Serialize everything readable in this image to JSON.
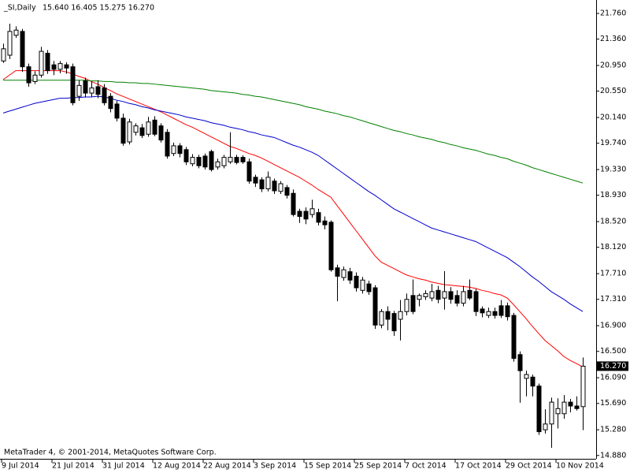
{
  "chart_data": {
    "type": "candlestick",
    "title": "_SI,Daily",
    "header_values": "15.640 16.405 15.275 16.270",
    "footer": "MetaTrader 4, © 2001-2014, MetaQuotes Software Corp.",
    "categories": [
      "9 Jul 2014",
      null,
      null,
      null,
      null,
      null,
      null,
      null,
      "21 Jul 2014",
      null,
      null,
      null,
      null,
      null,
      null,
      null,
      "31 Jul 2014",
      null,
      null,
      null,
      null,
      null,
      null,
      null,
      "12 Aug 2014",
      null,
      null,
      null,
      null,
      null,
      null,
      null,
      "22 Aug 2014",
      null,
      null,
      null,
      null,
      null,
      null,
      null,
      "3 Sep 2014",
      null,
      null,
      null,
      null,
      null,
      null,
      null,
      "15 Sep 2014",
      null,
      null,
      null,
      null,
      null,
      null,
      null,
      "25 Sep 2014",
      null,
      null,
      null,
      null,
      null,
      null,
      null,
      "7 Oct 2014",
      null,
      null,
      null,
      null,
      null,
      null,
      null,
      "17 Oct 2014",
      null,
      null,
      null,
      null,
      null,
      null,
      null,
      "29 Oct 2014",
      null,
      null,
      null,
      null,
      null,
      null,
      null,
      "10 Nov 2014",
      null,
      null,
      null,
      null
    ],
    "open": [
      21.02,
      21.11,
      21.42,
      21.48,
      20.93,
      20.7,
      20.8,
      21.14,
      20.96,
      20.89,
      20.96,
      20.93,
      20.47,
      20.71,
      20.52,
      20.62,
      20.6,
      20.47,
      20.35,
      20.13,
      19.76,
      19.91,
      19.98,
      19.88,
      20.1,
      20.01,
      19.91,
      19.58,
      19.7,
      19.64,
      19.42,
      19.52,
      19.54,
      19.61,
      19.37,
      19.39,
      19.45,
      19.52,
      19.52,
      19.45,
      19.21,
      19.17,
      19.03,
      19.15,
      18.99,
      19.05,
      18.96,
      18.68,
      18.68,
      18.63,
      18.66,
      18.53,
      18.51,
      17.8,
      17.65,
      17.74,
      17.67,
      17.45,
      17.55,
      17.49,
      16.91,
      17.12,
      17.09,
      17.0,
      17.12,
      17.37,
      17.31,
      17.35,
      17.33,
      17.45,
      17.33,
      17.43,
      17.37,
      17.25,
      17.45,
      17.43,
      17.16,
      17.06,
      17.12,
      17.21,
      17.21,
      17.06,
      16.45,
      16.08,
      16.1,
      15.96,
      15.28,
      15.37,
      15.53,
      15.53,
      15.71,
      15.65,
      15.64
    ],
    "high": [
      21.29,
      21.6,
      21.56,
      21.52,
      20.98,
      20.86,
      21.24,
      21.19,
      21.02,
      21.02,
      21.0,
      20.98,
      20.72,
      20.76,
      20.7,
      20.72,
      20.66,
      20.52,
      20.4,
      20.2,
      20.12,
      20.05,
      20.04,
      20.15,
      20.16,
      20.05,
      19.96,
      19.75,
      19.74,
      19.68,
      19.57,
      19.56,
      19.58,
      19.64,
      19.5,
      19.56,
      19.91,
      19.56,
      19.55,
      19.5,
      19.25,
      19.21,
      19.3,
      19.19,
      19.15,
      19.09,
      19.02,
      18.72,
      18.74,
      18.86,
      18.72,
      18.6,
      18.54,
      17.85,
      17.82,
      17.8,
      17.73,
      17.66,
      17.6,
      17.53,
      17.16,
      17.2,
      17.13,
      17.3,
      17.4,
      17.62,
      17.4,
      17.45,
      17.55,
      17.52,
      17.75,
      17.5,
      17.45,
      17.52,
      17.62,
      17.47,
      17.2,
      17.18,
      17.18,
      17.3,
      17.26,
      17.1,
      16.5,
      16.2,
      16.14,
      16.0,
      15.6,
      15.78,
      15.77,
      15.82,
      15.76,
      15.8,
      16.405
    ],
    "low": [
      20.99,
      21.05,
      21.38,
      20.85,
      20.62,
      20.66,
      20.76,
      20.82,
      20.8,
      20.83,
      20.82,
      20.33,
      20.4,
      20.45,
      20.46,
      20.44,
      20.33,
      20.22,
      20.08,
      19.7,
      19.72,
      19.86,
      19.82,
      19.84,
      19.85,
      19.75,
      19.5,
      19.54,
      19.52,
      19.4,
      19.38,
      19.35,
      19.33,
      19.3,
      19.33,
      19.35,
      19.42,
      19.41,
      19.42,
      19.11,
      19.06,
      18.98,
      18.99,
      18.95,
      18.95,
      18.88,
      18.6,
      18.5,
      18.48,
      18.58,
      18.46,
      18.4,
      17.74,
      17.28,
      17.6,
      17.55,
      17.43,
      17.4,
      17.38,
      16.85,
      16.86,
      16.83,
      16.74,
      16.67,
      17.06,
      17.08,
      17.2,
      17.3,
      17.28,
      17.25,
      17.15,
      17.24,
      17.2,
      17.2,
      17.3,
      17.05,
      17.03,
      17.02,
      17.01,
      17.02,
      16.98,
      16.34,
      15.7,
      15.8,
      15.8,
      15.2,
      15.22,
      15.0,
      15.3,
      15.45,
      15.55,
      15.58,
      15.275
    ],
    "close": [
      21.21,
      21.48,
      21.5,
      20.93,
      20.68,
      20.8,
      21.17,
      20.87,
      20.89,
      20.98,
      20.91,
      20.37,
      20.64,
      20.52,
      20.6,
      20.5,
      20.37,
      20.28,
      20.13,
      19.74,
      20.07,
      20.01,
      19.86,
      20.07,
      19.88,
      19.79,
      19.54,
      19.7,
      19.58,
      19.45,
      19.52,
      19.39,
      19.37,
      19.33,
      19.45,
      19.52,
      19.52,
      19.44,
      19.45,
      19.15,
      19.12,
      19.03,
      19.21,
      19.0,
      19.11,
      18.93,
      18.63,
      18.6,
      18.56,
      18.72,
      18.51,
      18.47,
      17.77,
      17.67,
      17.77,
      17.61,
      17.49,
      17.61,
      17.43,
      16.91,
      17.12,
      17.0,
      16.82,
      17.12,
      17.31,
      17.12,
      17.37,
      17.4,
      17.43,
      17.31,
      17.43,
      17.31,
      17.25,
      17.43,
      17.33,
      17.12,
      17.1,
      17.12,
      17.06,
      17.06,
      17.04,
      16.39,
      16.2,
      16.14,
      15.96,
      15.25,
      15.37,
      15.71,
      15.61,
      15.71,
      15.65,
      15.61,
      16.27
    ],
    "last_price_label": "16.270",
    "lines": [
      {
        "color": "#ff0000",
        "values": [
          20.73,
          20.8,
          20.87,
          20.87,
          20.87,
          20.87,
          20.87,
          20.87,
          20.87,
          20.87,
          20.85,
          20.82,
          20.78,
          20.75,
          20.7,
          20.66,
          20.61,
          20.56,
          20.51,
          20.47,
          20.43,
          20.39,
          20.35,
          20.31,
          20.27,
          20.23,
          20.18,
          20.13,
          20.08,
          20.03,
          19.99,
          19.94,
          19.89,
          19.84,
          19.79,
          19.74,
          19.69,
          19.66,
          19.62,
          19.58,
          19.55,
          19.51,
          19.46,
          19.41,
          19.36,
          19.31,
          19.26,
          19.21,
          19.15,
          19.09,
          19.02,
          18.96,
          18.9,
          18.77,
          18.64,
          18.51,
          18.38,
          18.25,
          18.12,
          17.99,
          17.89,
          17.84,
          17.79,
          17.74,
          17.69,
          17.66,
          17.63,
          17.61,
          17.58,
          17.56,
          17.54,
          17.53,
          17.52,
          17.51,
          17.5,
          17.48,
          17.45,
          17.43,
          17.4,
          17.38,
          17.33,
          17.23,
          17.12,
          17.01,
          16.89,
          16.78,
          16.67,
          16.59,
          16.51,
          16.42,
          16.36,
          16.31,
          16.26
        ]
      },
      {
        "color": "#0000cc",
        "values": [
          20.21,
          20.24,
          20.27,
          20.3,
          20.33,
          20.36,
          20.38,
          20.4,
          20.42,
          20.44,
          20.44,
          20.45,
          20.45,
          20.46,
          20.46,
          20.47,
          20.46,
          20.44,
          20.41,
          20.39,
          20.36,
          20.34,
          20.31,
          20.29,
          20.26,
          20.24,
          20.22,
          20.2,
          20.18,
          20.15,
          20.13,
          20.11,
          20.09,
          20.06,
          20.04,
          20.02,
          19.99,
          19.97,
          19.95,
          19.92,
          19.9,
          19.87,
          19.85,
          19.83,
          19.79,
          19.75,
          19.71,
          19.68,
          19.64,
          19.6,
          19.55,
          19.48,
          19.41,
          19.34,
          19.27,
          19.2,
          19.13,
          19.06,
          18.99,
          18.93,
          18.86,
          18.79,
          18.72,
          18.67,
          18.62,
          18.57,
          18.52,
          18.47,
          18.42,
          18.39,
          18.36,
          18.33,
          18.3,
          18.27,
          18.24,
          18.21,
          18.16,
          18.11,
          18.06,
          18.01,
          17.96,
          17.89,
          17.82,
          17.74,
          17.66,
          17.59,
          17.51,
          17.43,
          17.37,
          17.31,
          17.24,
          17.18,
          17.12
        ]
      },
      {
        "color": "#008000",
        "values": [
          20.72,
          20.72,
          20.72,
          20.72,
          20.72,
          20.72,
          20.72,
          20.72,
          20.72,
          20.72,
          20.72,
          20.72,
          20.72,
          20.72,
          20.71,
          20.71,
          20.7,
          20.7,
          20.69,
          20.69,
          20.68,
          20.68,
          20.67,
          20.67,
          20.66,
          20.65,
          20.64,
          20.63,
          20.62,
          20.61,
          20.6,
          20.59,
          20.58,
          20.56,
          20.55,
          20.54,
          20.53,
          20.52,
          20.5,
          20.49,
          20.47,
          20.46,
          20.44,
          20.42,
          20.4,
          20.38,
          20.36,
          20.34,
          20.31,
          20.29,
          20.27,
          20.24,
          20.22,
          20.2,
          20.17,
          20.15,
          20.12,
          20.09,
          20.06,
          20.03,
          20.0,
          19.97,
          19.94,
          19.92,
          19.89,
          19.87,
          19.84,
          19.82,
          19.8,
          19.77,
          19.75,
          19.72,
          19.7,
          19.67,
          19.65,
          19.63,
          19.6,
          19.57,
          19.55,
          19.52,
          19.5,
          19.46,
          19.43,
          19.4,
          19.36,
          19.33,
          19.3,
          19.27,
          19.24,
          19.21,
          19.18,
          19.15,
          19.12
        ]
      }
    ],
    "up_color": "#ffffff",
    "down_color": "#000000",
    "wick_color": "#000000",
    "ylim": [
      14.828,
      21.969
    ],
    "yticks": [
      {
        "value": 21.76,
        "label": "21.760"
      },
      {
        "value": 21.36,
        "label": "21.360"
      },
      {
        "value": 20.95,
        "label": "20.950"
      },
      {
        "value": 20.55,
        "label": "20.550"
      },
      {
        "value": 20.14,
        "label": "20.140"
      },
      {
        "value": 19.74,
        "label": "19.740"
      },
      {
        "value": 19.33,
        "label": "19.330"
      },
      {
        "value": 18.93,
        "label": "18.930"
      },
      {
        "value": 18.52,
        "label": "18.520"
      },
      {
        "value": 18.12,
        "label": "18.120"
      },
      {
        "value": 17.71,
        "label": "17.710"
      },
      {
        "value": 17.31,
        "label": "17.310"
      },
      {
        "value": 16.9,
        "label": "16.900"
      },
      {
        "value": 16.5,
        "label": "16.500"
      },
      {
        "value": 16.09,
        "label": "16.090"
      },
      {
        "value": 15.69,
        "label": "15.690"
      },
      {
        "value": 15.28,
        "label": "15.280"
      },
      {
        "value": 14.88,
        "label": "14.880"
      }
    ],
    "grid": false
  }
}
